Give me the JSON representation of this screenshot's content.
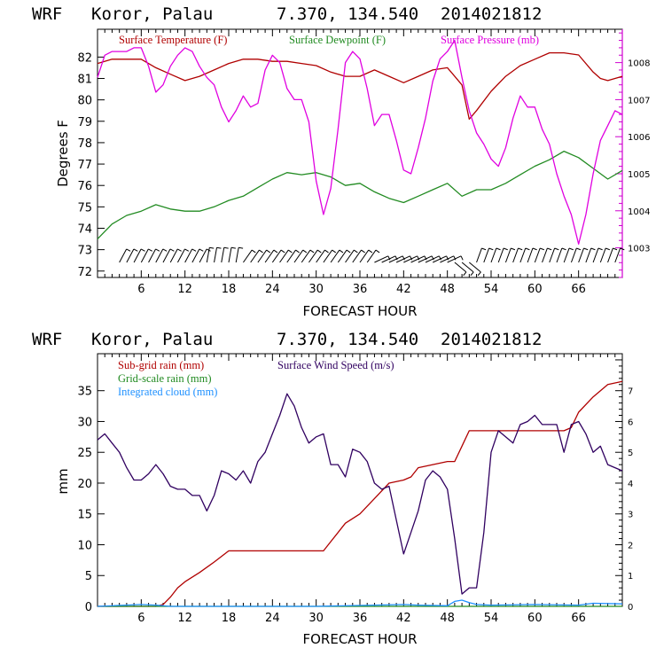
{
  "chart_data": [
    {
      "type": "line",
      "header": {
        "model": "WRF",
        "location": "Koror, Palau",
        "coords": "7.370, 134.540",
        "init_time": "2014021812"
      },
      "xlabel": "FORECAST HOUR",
      "ylabel": "Degrees F",
      "xlim": [
        0,
        72
      ],
      "ylim": [
        71.7,
        83.3
      ],
      "x_ticks": [
        "6",
        "12",
        "18",
        "24",
        "30",
        "36",
        "42",
        "48",
        "54",
        "60",
        "66"
      ],
      "y_ticks": [
        "72",
        "73",
        "74",
        "75",
        "76",
        "77",
        "78",
        "79",
        "80",
        "81",
        "82"
      ],
      "y2_range": [
        1002.2,
        1008.9
      ],
      "y2_ticks": [
        "1003",
        "1004",
        "1005",
        "1006",
        "1007",
        "1008"
      ],
      "colors": {
        "temperature": "#b00000",
        "dewpoint": "#228b22",
        "pressure": "#e000e0",
        "axis": "#000000",
        "right_axis": "#d000d0",
        "barbs": "#000000"
      },
      "series": [
        {
          "name": "Surface Temperature (F)",
          "axis": "left",
          "x": [
            0,
            2,
            4,
            6,
            8,
            10,
            12,
            14,
            16,
            18,
            20,
            22,
            24,
            26,
            28,
            30,
            32,
            34,
            36,
            38,
            40,
            42,
            44,
            46,
            48,
            50,
            51,
            52,
            54,
            56,
            58,
            60,
            62,
            64,
            66,
            68,
            69,
            70,
            71,
            72
          ],
          "y": [
            81.7,
            81.9,
            81.9,
            81.9,
            81.5,
            81.2,
            80.9,
            81.1,
            81.4,
            81.7,
            81.9,
            81.9,
            81.8,
            81.8,
            81.7,
            81.6,
            81.3,
            81.1,
            81.1,
            81.4,
            81.1,
            80.8,
            81.1,
            81.4,
            81.5,
            80.7,
            79.1,
            79.5,
            80.4,
            81.1,
            81.6,
            81.9,
            82.2,
            82.2,
            82.1,
            81.3,
            81.0,
            80.9,
            81.0,
            81.1
          ]
        },
        {
          "name": "Surface Dewpoint (F)",
          "axis": "left",
          "x": [
            0,
            2,
            4,
            6,
            8,
            10,
            12,
            14,
            16,
            18,
            20,
            22,
            24,
            26,
            28,
            30,
            32,
            34,
            36,
            38,
            40,
            42,
            44,
            46,
            48,
            50,
            52,
            54,
            56,
            58,
            60,
            62,
            64,
            66,
            68,
            70,
            72
          ],
          "y": [
            73.5,
            74.2,
            74.6,
            74.8,
            75.1,
            74.9,
            74.8,
            74.8,
            75.0,
            75.3,
            75.5,
            75.9,
            76.3,
            76.6,
            76.5,
            76.6,
            76.4,
            76.0,
            76.1,
            75.7,
            75.4,
            75.2,
            75.5,
            75.8,
            76.1,
            75.5,
            75.8,
            75.8,
            76.1,
            76.5,
            76.9,
            77.2,
            77.6,
            77.3,
            76.8,
            76.3,
            76.7
          ]
        },
        {
          "name": "Surface Pressure (mb)",
          "axis": "right",
          "x": [
            0,
            1,
            2,
            3,
            4,
            5,
            6,
            7,
            8,
            9,
            10,
            11,
            12,
            13,
            14,
            15,
            16,
            17,
            18,
            19,
            20,
            21,
            22,
            23,
            24,
            25,
            26,
            27,
            28,
            29,
            30,
            31,
            32,
            33,
            34,
            35,
            36,
            37,
            38,
            39,
            40,
            41,
            42,
            43,
            44,
            45,
            46,
            47,
            48,
            49,
            50,
            51,
            52,
            53,
            54,
            55,
            56,
            57,
            58,
            59,
            60,
            61,
            62,
            63,
            64,
            65,
            66,
            67,
            68,
            69,
            70,
            71,
            72
          ],
          "y": [
            1007.6,
            1008.2,
            1008.3,
            1008.3,
            1008.3,
            1008.4,
            1008.4,
            1007.9,
            1007.2,
            1007.4,
            1007.9,
            1008.2,
            1008.4,
            1008.3,
            1007.9,
            1007.6,
            1007.4,
            1006.8,
            1006.4,
            1006.7,
            1007.1,
            1006.8,
            1006.9,
            1007.8,
            1008.2,
            1008.0,
            1007.3,
            1007.0,
            1007.0,
            1006.4,
            1004.8,
            1003.9,
            1004.6,
            1006.2,
            1008.0,
            1008.3,
            1008.1,
            1007.3,
            1006.3,
            1006.6,
            1006.6,
            1005.9,
            1005.1,
            1005.0,
            1005.7,
            1006.5,
            1007.5,
            1008.1,
            1008.3,
            1008.6,
            1007.6,
            1006.7,
            1006.1,
            1005.8,
            1005.4,
            1005.2,
            1005.7,
            1006.5,
            1007.1,
            1006.8,
            1006.8,
            1006.2,
            1005.8,
            1005.0,
            1004.4,
            1003.9,
            1003.1,
            1003.9,
            1005.0,
            1005.9,
            1006.3,
            1006.7,
            1006.6
          ]
        }
      ],
      "wind_barbs": "hourly surface wind barbs along the lower edge of the plot (forecast hours 1–72)"
    },
    {
      "type": "line",
      "header": {
        "model": "WRF",
        "location": "Koror, Palau",
        "coords": "7.370, 134.540",
        "init_time": "2014021812"
      },
      "xlabel": "FORECAST HOUR",
      "ylabel": "mm",
      "xlim": [
        0,
        72
      ],
      "ylim": [
        0,
        41
      ],
      "x_ticks": [
        "6",
        "12",
        "18",
        "24",
        "30",
        "36",
        "42",
        "48",
        "54",
        "60",
        "66"
      ],
      "y_ticks": [
        "0",
        "5",
        "10",
        "15",
        "20",
        "25",
        "30",
        "35"
      ],
      "y2_range": [
        0,
        8.2
      ],
      "y2_ticks": [
        "0",
        "1",
        "2",
        "3",
        "4",
        "5",
        "6",
        "7"
      ],
      "colors": {
        "subgrid_rain": "#b00000",
        "gridscale_rain": "#228b22",
        "cloud": "#1e90ff",
        "wind_speed": "#300060",
        "axis": "#000000"
      },
      "series": [
        {
          "name": "Sub-grid rain (mm)",
          "axis": "left",
          "x": [
            0,
            8,
            9,
            10,
            11,
            12,
            14,
            16,
            18,
            20,
            22,
            24,
            26,
            28,
            30,
            31,
            32,
            34,
            36,
            38,
            40,
            42,
            43,
            44,
            46,
            48,
            49,
            50,
            51,
            52,
            54,
            56,
            58,
            60,
            62,
            64,
            65,
            66,
            68,
            70,
            72
          ],
          "y": [
            0,
            0,
            0.3,
            1.5,
            3,
            4,
            5.5,
            7.2,
            9,
            9,
            9,
            9,
            9,
            9,
            9,
            9,
            10.5,
            13.5,
            15,
            17.5,
            20,
            20.5,
            21,
            22.5,
            23,
            23.5,
            23.5,
            26,
            28.5,
            28.5,
            28.5,
            28.5,
            28.5,
            28.5,
            28.5,
            28.5,
            29,
            31.5,
            34,
            36,
            36.5
          ]
        },
        {
          "name": "Grid-scale rain (mm)",
          "axis": "left",
          "x": [
            0,
            72
          ],
          "y": [
            0,
            0
          ]
        },
        {
          "name": "Integrated cloud (mm)",
          "axis": "left",
          "x": [
            0,
            6,
            8,
            10,
            30,
            38,
            42,
            44,
            48,
            49,
            50,
            51,
            52,
            54,
            60,
            66,
            68,
            72
          ],
          "y": [
            0,
            0.3,
            0.2,
            0,
            0,
            0.2,
            0.3,
            0.2,
            0.1,
            0.8,
            1.0,
            0.6,
            0.3,
            0.2,
            0.3,
            0.2,
            0.5,
            0.4
          ]
        },
        {
          "name": "Surface Wind Speed (m/s)",
          "axis": "right",
          "x": [
            0,
            1,
            2,
            3,
            4,
            5,
            6,
            7,
            8,
            9,
            10,
            11,
            12,
            13,
            14,
            15,
            16,
            17,
            18,
            19,
            20,
            21,
            22,
            23,
            24,
            25,
            26,
            27,
            28,
            29,
            30,
            31,
            32,
            33,
            34,
            35,
            36,
            37,
            38,
            39,
            40,
            41,
            42,
            43,
            44,
            45,
            46,
            47,
            48,
            49,
            50,
            51,
            52,
            53,
            54,
            55,
            56,
            57,
            58,
            59,
            60,
            61,
            62,
            63,
            64,
            65,
            66,
            67,
            68,
            69,
            70,
            71,
            72
          ],
          "y": [
            5.4,
            5.6,
            5.3,
            5.0,
            4.5,
            4.1,
            4.1,
            4.3,
            4.6,
            4.3,
            3.9,
            3.8,
            3.8,
            3.6,
            3.6,
            3.1,
            3.6,
            4.4,
            4.3,
            4.1,
            4.4,
            4.0,
            4.7,
            5.0,
            5.6,
            6.2,
            6.9,
            6.5,
            5.8,
            5.3,
            5.5,
            5.6,
            4.6,
            4.6,
            4.2,
            5.1,
            5.0,
            4.7,
            4.0,
            3.8,
            3.9,
            2.8,
            1.7,
            2.4,
            3.1,
            4.1,
            4.4,
            4.2,
            3.8,
            2.2,
            0.4,
            0.6,
            0.6,
            2.4,
            5.0,
            5.7,
            5.5,
            5.3,
            5.9,
            6.0,
            6.2,
            5.9,
            5.9,
            5.9,
            5.0,
            5.9,
            6.0,
            5.6,
            5.0,
            5.2,
            4.6,
            4.5,
            4.4
          ]
        }
      ]
    }
  ]
}
